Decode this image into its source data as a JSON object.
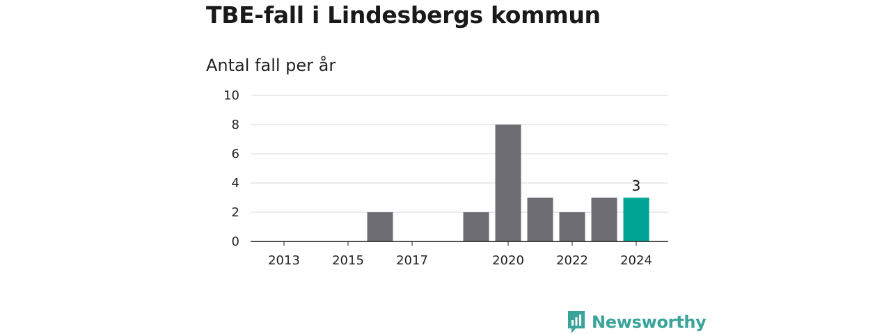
{
  "title": "TBE-fall i Lindesbergs kommun",
  "subtitle": "Antal fall per år",
  "brand": {
    "name": "Newsworthy",
    "icon": "newsworthy-logo-icon",
    "color": "#3aa39a"
  },
  "chart_data": {
    "type": "bar",
    "categories": [
      "2013",
      "2014",
      "2015",
      "2016",
      "2017",
      "2018",
      "2019",
      "2020",
      "2021",
      "2022",
      "2023",
      "2024"
    ],
    "values": [
      0,
      0,
      0,
      2,
      0,
      0,
      2,
      8,
      3,
      2,
      3,
      3
    ],
    "x_tick_labels": [
      "2013",
      "2015",
      "2017",
      "2020",
      "2022",
      "2024"
    ],
    "y_ticks": [
      0,
      2,
      4,
      6,
      8,
      10
    ],
    "ylim": [
      0,
      10
    ],
    "grid": true,
    "bar_color": "#6e6d73",
    "highlight_color": "#00a495",
    "highlight_category": "2024",
    "data_labels": [
      {
        "category": "2024",
        "text": "3"
      }
    ]
  }
}
